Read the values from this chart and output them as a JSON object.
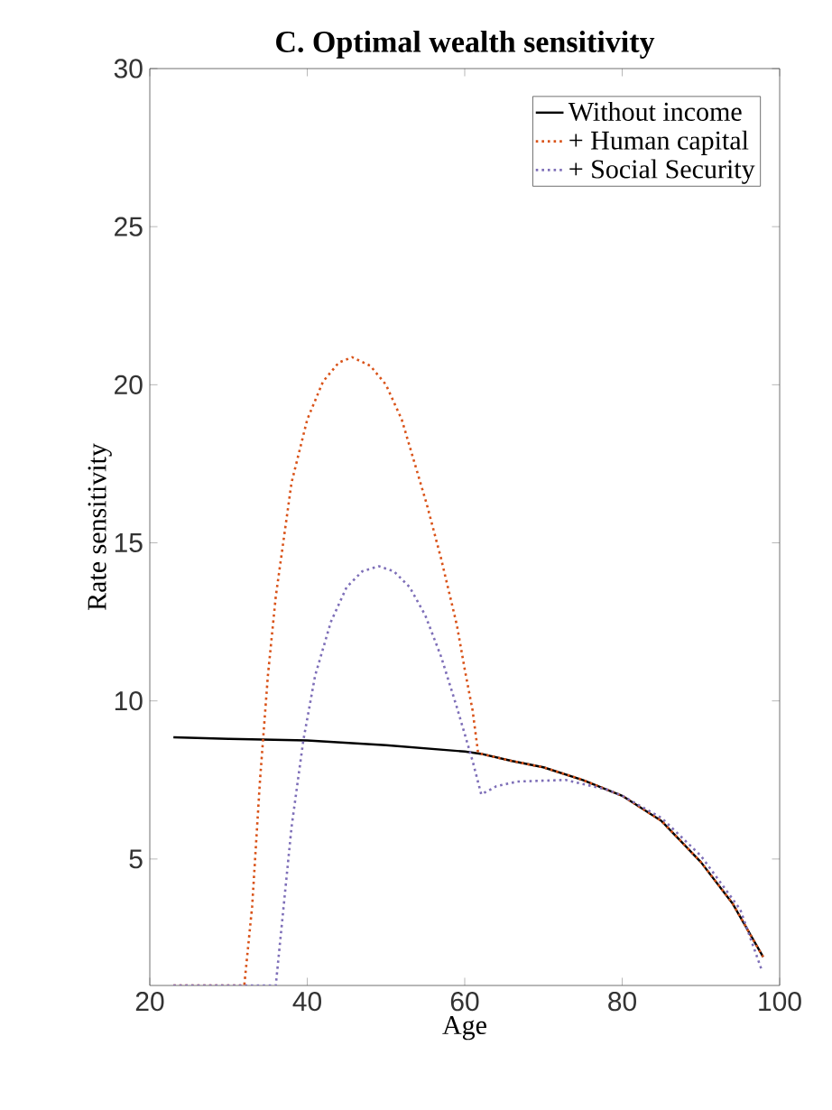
{
  "chart_data": {
    "type": "line",
    "title": "C. Optimal wealth sensitivity",
    "xlabel": "Age",
    "ylabel": "Rate sensitivity",
    "xlim": [
      20,
      100
    ],
    "ylim": [
      1,
      30
    ],
    "xticks": [
      20,
      40,
      60,
      80,
      100
    ],
    "yticks": [
      5,
      10,
      15,
      20,
      25,
      30
    ],
    "grid": false,
    "legend": "top right",
    "series": [
      {
        "name": "Without income",
        "color": "#000000",
        "line_style": "solid",
        "x": [
          23,
          30,
          40,
          50,
          60,
          62,
          66,
          70,
          75,
          80,
          85,
          90,
          94,
          97.9
        ],
        "values": [
          8.85,
          8.8,
          8.75,
          8.6,
          8.4,
          8.33,
          8.1,
          7.9,
          7.5,
          7.0,
          6.2,
          4.9,
          3.6,
          1.9
        ]
      },
      {
        "name": "+ Human capital",
        "color": "#d95319",
        "line_style": "dotted",
        "x": [
          23,
          32,
          33,
          34,
          35,
          36,
          38,
          40,
          42,
          44,
          45.7,
          48,
          50,
          52,
          55.2,
          57,
          59,
          60,
          61,
          61.7,
          66,
          70,
          75,
          80,
          85,
          90,
          94,
          97.9
        ],
        "values": [
          1,
          1,
          3.5,
          7.5,
          10.8,
          13.3,
          16.9,
          18.9,
          20.1,
          20.7,
          20.87,
          20.6,
          20,
          18.9,
          16.2,
          14.5,
          12.4,
          11,
          9.7,
          8.35,
          8.1,
          7.9,
          7.5,
          7.0,
          6.2,
          4.9,
          3.6,
          1.9
        ]
      },
      {
        "name": "+ Social Security",
        "color": "#7e6fb8",
        "line_style": "dotted",
        "x": [
          23,
          36,
          37,
          38,
          39.5,
          41,
          43,
          45,
          47,
          49.1,
          51,
          53,
          55,
          57,
          59,
          61,
          62.1,
          64,
          66.7,
          72.8,
          78,
          80,
          85,
          90,
          95,
          97.7
        ],
        "values": [
          1,
          1,
          3.5,
          6,
          8.75,
          10.8,
          12.5,
          13.6,
          14.1,
          14.26,
          14.1,
          13.6,
          12.7,
          11.4,
          9.8,
          8.1,
          7.04,
          7.3,
          7.45,
          7.5,
          7.2,
          7.0,
          6.3,
          5.1,
          3.4,
          1.5
        ]
      }
    ]
  }
}
